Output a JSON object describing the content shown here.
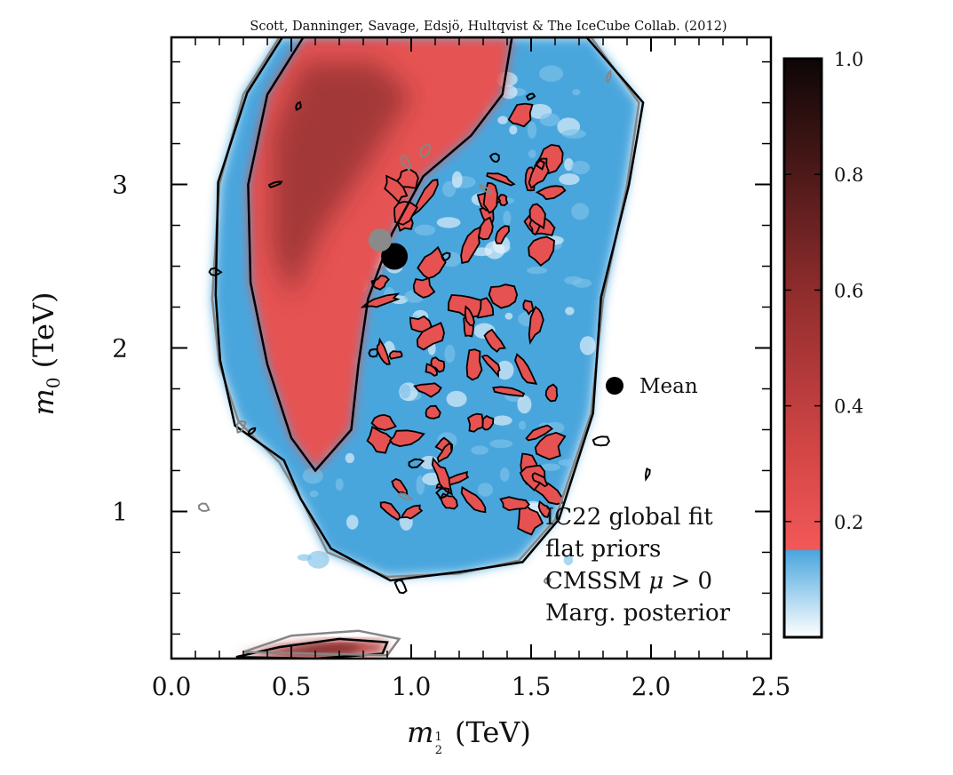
{
  "chart_data": {
    "type": "heatmap",
    "credit": "Scott, Danninger, Savage, Edsjö, Hultqvist & The IceCube Collab. (2012)",
    "xlabel": "m½ (TeV)",
    "xlabel_parts": {
      "symbol": "m",
      "sub_num": "1",
      "sub_den": "2",
      "unit": "(TeV)"
    },
    "ylabel": "m0 (TeV)",
    "ylabel_parts": {
      "symbol": "m",
      "sub": "0",
      "unit": "(TeV)"
    },
    "xlim": [
      0.0,
      2.5
    ],
    "ylim": [
      0.1,
      3.9
    ],
    "x_ticks": [
      "0.0",
      "0.5",
      "1.0",
      "1.5",
      "2.0",
      "2.5"
    ],
    "y_ticks": [
      "1",
      "2",
      "3"
    ],
    "colorbar": {
      "range": [
        0.0,
        1.0
      ],
      "ticks": [
        "0.2",
        "0.4",
        "0.6",
        "0.8",
        "1.0"
      ],
      "tick_values": [
        0.2,
        0.4,
        0.6,
        0.8,
        1.0
      ],
      "stops": [
        {
          "v": 0.0,
          "c": "#ffffff"
        },
        {
          "v": 0.15,
          "c": "#4aa6dd"
        },
        {
          "v": 0.151,
          "c": "#f25858"
        },
        {
          "v": 0.3,
          "c": "#d84848"
        },
        {
          "v": 0.6,
          "c": "#8f2c2c"
        },
        {
          "v": 1.0,
          "c": "#0d0606"
        }
      ]
    },
    "legend": {
      "label": "Mean",
      "position": "right-middle"
    },
    "points": [
      {
        "name": "mean",
        "x": 0.93,
        "y": 2.56,
        "color": "#000000"
      },
      {
        "name": "mean-alt",
        "x": 0.87,
        "y": 2.66,
        "color": "#8a8a8a"
      }
    ],
    "annotations": [
      "IC22 global fit",
      "flat priors",
      "CMSSM μ > 0",
      "Marg. posterior"
    ],
    "annotation_parts": {
      "cmssm_text": "CMSSM",
      "mu": "μ",
      "cmssm_rest": " > 0"
    },
    "regions": [
      {
        "name": "main-blob",
        "x_range": [
          0.2,
          1.95
        ],
        "y_range": [
          0.6,
          3.9
        ]
      },
      {
        "name": "red-band",
        "x_range": [
          0.4,
          1.35
        ],
        "y_range": [
          1.2,
          3.9
        ]
      },
      {
        "name": "low-m0-strip",
        "x_range": [
          0.27,
          0.92
        ],
        "y_range": [
          0.1,
          0.25
        ]
      }
    ],
    "colors": {
      "blue": "#4aa6dd",
      "red": "#e65252",
      "dark": "#6e2424",
      "contour_black": "#000000",
      "contour_grey": "#858585"
    },
    "grid": false
  }
}
